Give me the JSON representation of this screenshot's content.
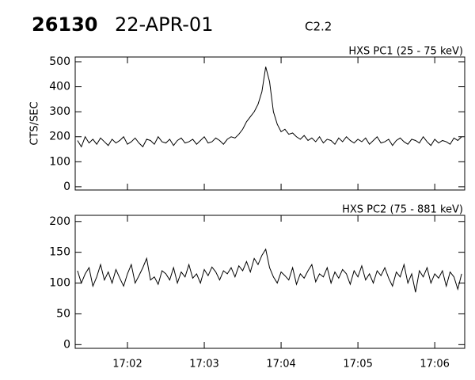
{
  "header": {
    "id": "26130",
    "date": "22-APR-01",
    "class": "C2.2"
  },
  "chart_data": [
    {
      "type": "line",
      "title": "HXS PC1 (25 - 75 keV)",
      "ylabel": "CTS/SEC",
      "x": [
        1021.35,
        1021.4,
        1021.45,
        1021.5,
        1021.55,
        1021.6,
        1021.65,
        1021.7,
        1021.75,
        1021.8,
        1021.85,
        1021.9,
        1021.95,
        1022,
        1022.05,
        1022.1,
        1022.15,
        1022.2,
        1022.25,
        1022.3,
        1022.35,
        1022.4,
        1022.45,
        1022.5,
        1022.55,
        1022.6,
        1022.65,
        1022.7,
        1022.75,
        1022.8,
        1022.85,
        1022.9,
        1022.95,
        1023,
        1023.05,
        1023.1,
        1023.15,
        1023.2,
        1023.25,
        1023.3,
        1023.35,
        1023.4,
        1023.45,
        1023.5,
        1023.55,
        1023.6,
        1023.65,
        1023.7,
        1023.75,
        1023.8,
        1023.85,
        1023.9,
        1023.95,
        1024,
        1024.05,
        1024.1,
        1024.15,
        1024.2,
        1024.25,
        1024.3,
        1024.35,
        1024.4,
        1024.45,
        1024.5,
        1024.55,
        1024.6,
        1024.65,
        1024.7,
        1024.75,
        1024.8,
        1024.85,
        1024.9,
        1024.95,
        1025,
        1025.05,
        1025.1,
        1025.15,
        1025.2,
        1025.25,
        1025.3,
        1025.35,
        1025.4,
        1025.45,
        1025.5,
        1025.55,
        1025.6,
        1025.65,
        1025.7,
        1025.75,
        1025.8,
        1025.85,
        1025.9,
        1025.95,
        1026,
        1026.05,
        1026.1,
        1026.15,
        1026.2,
        1026.25,
        1026.3,
        1026.35
      ],
      "series": [
        {
          "color": "#000000",
          "values": [
            185,
            160,
            200,
            175,
            190,
            170,
            195,
            180,
            165,
            190,
            175,
            185,
            200,
            170,
            180,
            195,
            175,
            160,
            190,
            185,
            170,
            200,
            180,
            175,
            190,
            165,
            185,
            195,
            175,
            180,
            190,
            170,
            185,
            200,
            175,
            180,
            195,
            185,
            170,
            190,
            200,
            195,
            210,
            230,
            260,
            280,
            300,
            330,
            380,
            480,
            420,
            300,
            250,
            220,
            230,
            210,
            215,
            200,
            190,
            205,
            185,
            195,
            180,
            200,
            175,
            190,
            185,
            170,
            195,
            180,
            200,
            185,
            175,
            190,
            180,
            195,
            170,
            185,
            200,
            175,
            180,
            190,
            165,
            185,
            195,
            180,
            170,
            190,
            185,
            175,
            200,
            180,
            165,
            190,
            175,
            185,
            180,
            170,
            195,
            185,
            200
          ]
        }
      ],
      "xlim": [
        1021.32,
        1026.39
      ],
      "xticks": [
        1022,
        1023,
        1024,
        1025,
        1026
      ],
      "ylim": [
        -13,
        519
      ],
      "yticks": [
        0,
        100,
        200,
        300,
        400,
        500
      ]
    },
    {
      "type": "line",
      "title": "HXS PC2 (75 - 881 keV)",
      "x": [
        1021.35,
        1021.4,
        1021.45,
        1021.5,
        1021.55,
        1021.6,
        1021.65,
        1021.7,
        1021.75,
        1021.8,
        1021.85,
        1021.9,
        1021.95,
        1022,
        1022.05,
        1022.1,
        1022.15,
        1022.2,
        1022.25,
        1022.3,
        1022.35,
        1022.4,
        1022.45,
        1022.5,
        1022.55,
        1022.6,
        1022.65,
        1022.7,
        1022.75,
        1022.8,
        1022.85,
        1022.9,
        1022.95,
        1023,
        1023.05,
        1023.1,
        1023.15,
        1023.2,
        1023.25,
        1023.3,
        1023.35,
        1023.4,
        1023.45,
        1023.5,
        1023.55,
        1023.6,
        1023.65,
        1023.7,
        1023.75,
        1023.8,
        1023.85,
        1023.9,
        1023.95,
        1024,
        1024.05,
        1024.1,
        1024.15,
        1024.2,
        1024.25,
        1024.3,
        1024.35,
        1024.4,
        1024.45,
        1024.5,
        1024.55,
        1024.6,
        1024.65,
        1024.7,
        1024.75,
        1024.8,
        1024.85,
        1024.9,
        1024.95,
        1025,
        1025.05,
        1025.1,
        1025.15,
        1025.2,
        1025.25,
        1025.3,
        1025.35,
        1025.4,
        1025.45,
        1025.5,
        1025.55,
        1025.6,
        1025.65,
        1025.7,
        1025.75,
        1025.8,
        1025.85,
        1025.9,
        1025.95,
        1026,
        1026.05,
        1026.1,
        1026.15,
        1026.2,
        1026.25,
        1026.3,
        1026.35
      ],
      "series": [
        {
          "color": "#000000",
          "values": [
            120,
            100,
            115,
            125,
            95,
            110,
            130,
            105,
            118,
            100,
            122,
            108,
            95,
            115,
            130,
            100,
            112,
            125,
            140,
            105,
            110,
            98,
            120,
            115,
            105,
            125,
            100,
            118,
            110,
            130,
            108,
            115,
            100,
            122,
            112,
            126,
            118,
            105,
            120,
            115,
            125,
            110,
            128,
            120,
            135,
            118,
            140,
            130,
            145,
            155,
            125,
            110,
            100,
            118,
            112,
            105,
            125,
            98,
            115,
            108,
            120,
            130,
            102,
            115,
            110,
            125,
            100,
            118,
            108,
            122,
            115,
            98,
            120,
            110,
            128,
            105,
            115,
            100,
            120,
            112,
            125,
            108,
            95,
            118,
            110,
            130,
            100,
            115,
            85,
            120,
            110,
            125,
            100,
            115,
            108,
            120,
            95,
            118,
            110,
            90,
            115
          ]
        }
      ],
      "xlim": [
        1021.32,
        1026.39
      ],
      "xticks": [
        {
          "value": 1022,
          "label": "17:02"
        },
        {
          "value": 1023,
          "label": "17:03"
        },
        {
          "value": 1024,
          "label": "17:04"
        },
        {
          "value": 1025,
          "label": "17:05"
        },
        {
          "value": 1026,
          "label": "17:06"
        }
      ],
      "ylim": [
        -6,
        210
      ],
      "yticks": [
        0,
        50,
        100,
        150,
        200
      ]
    }
  ]
}
